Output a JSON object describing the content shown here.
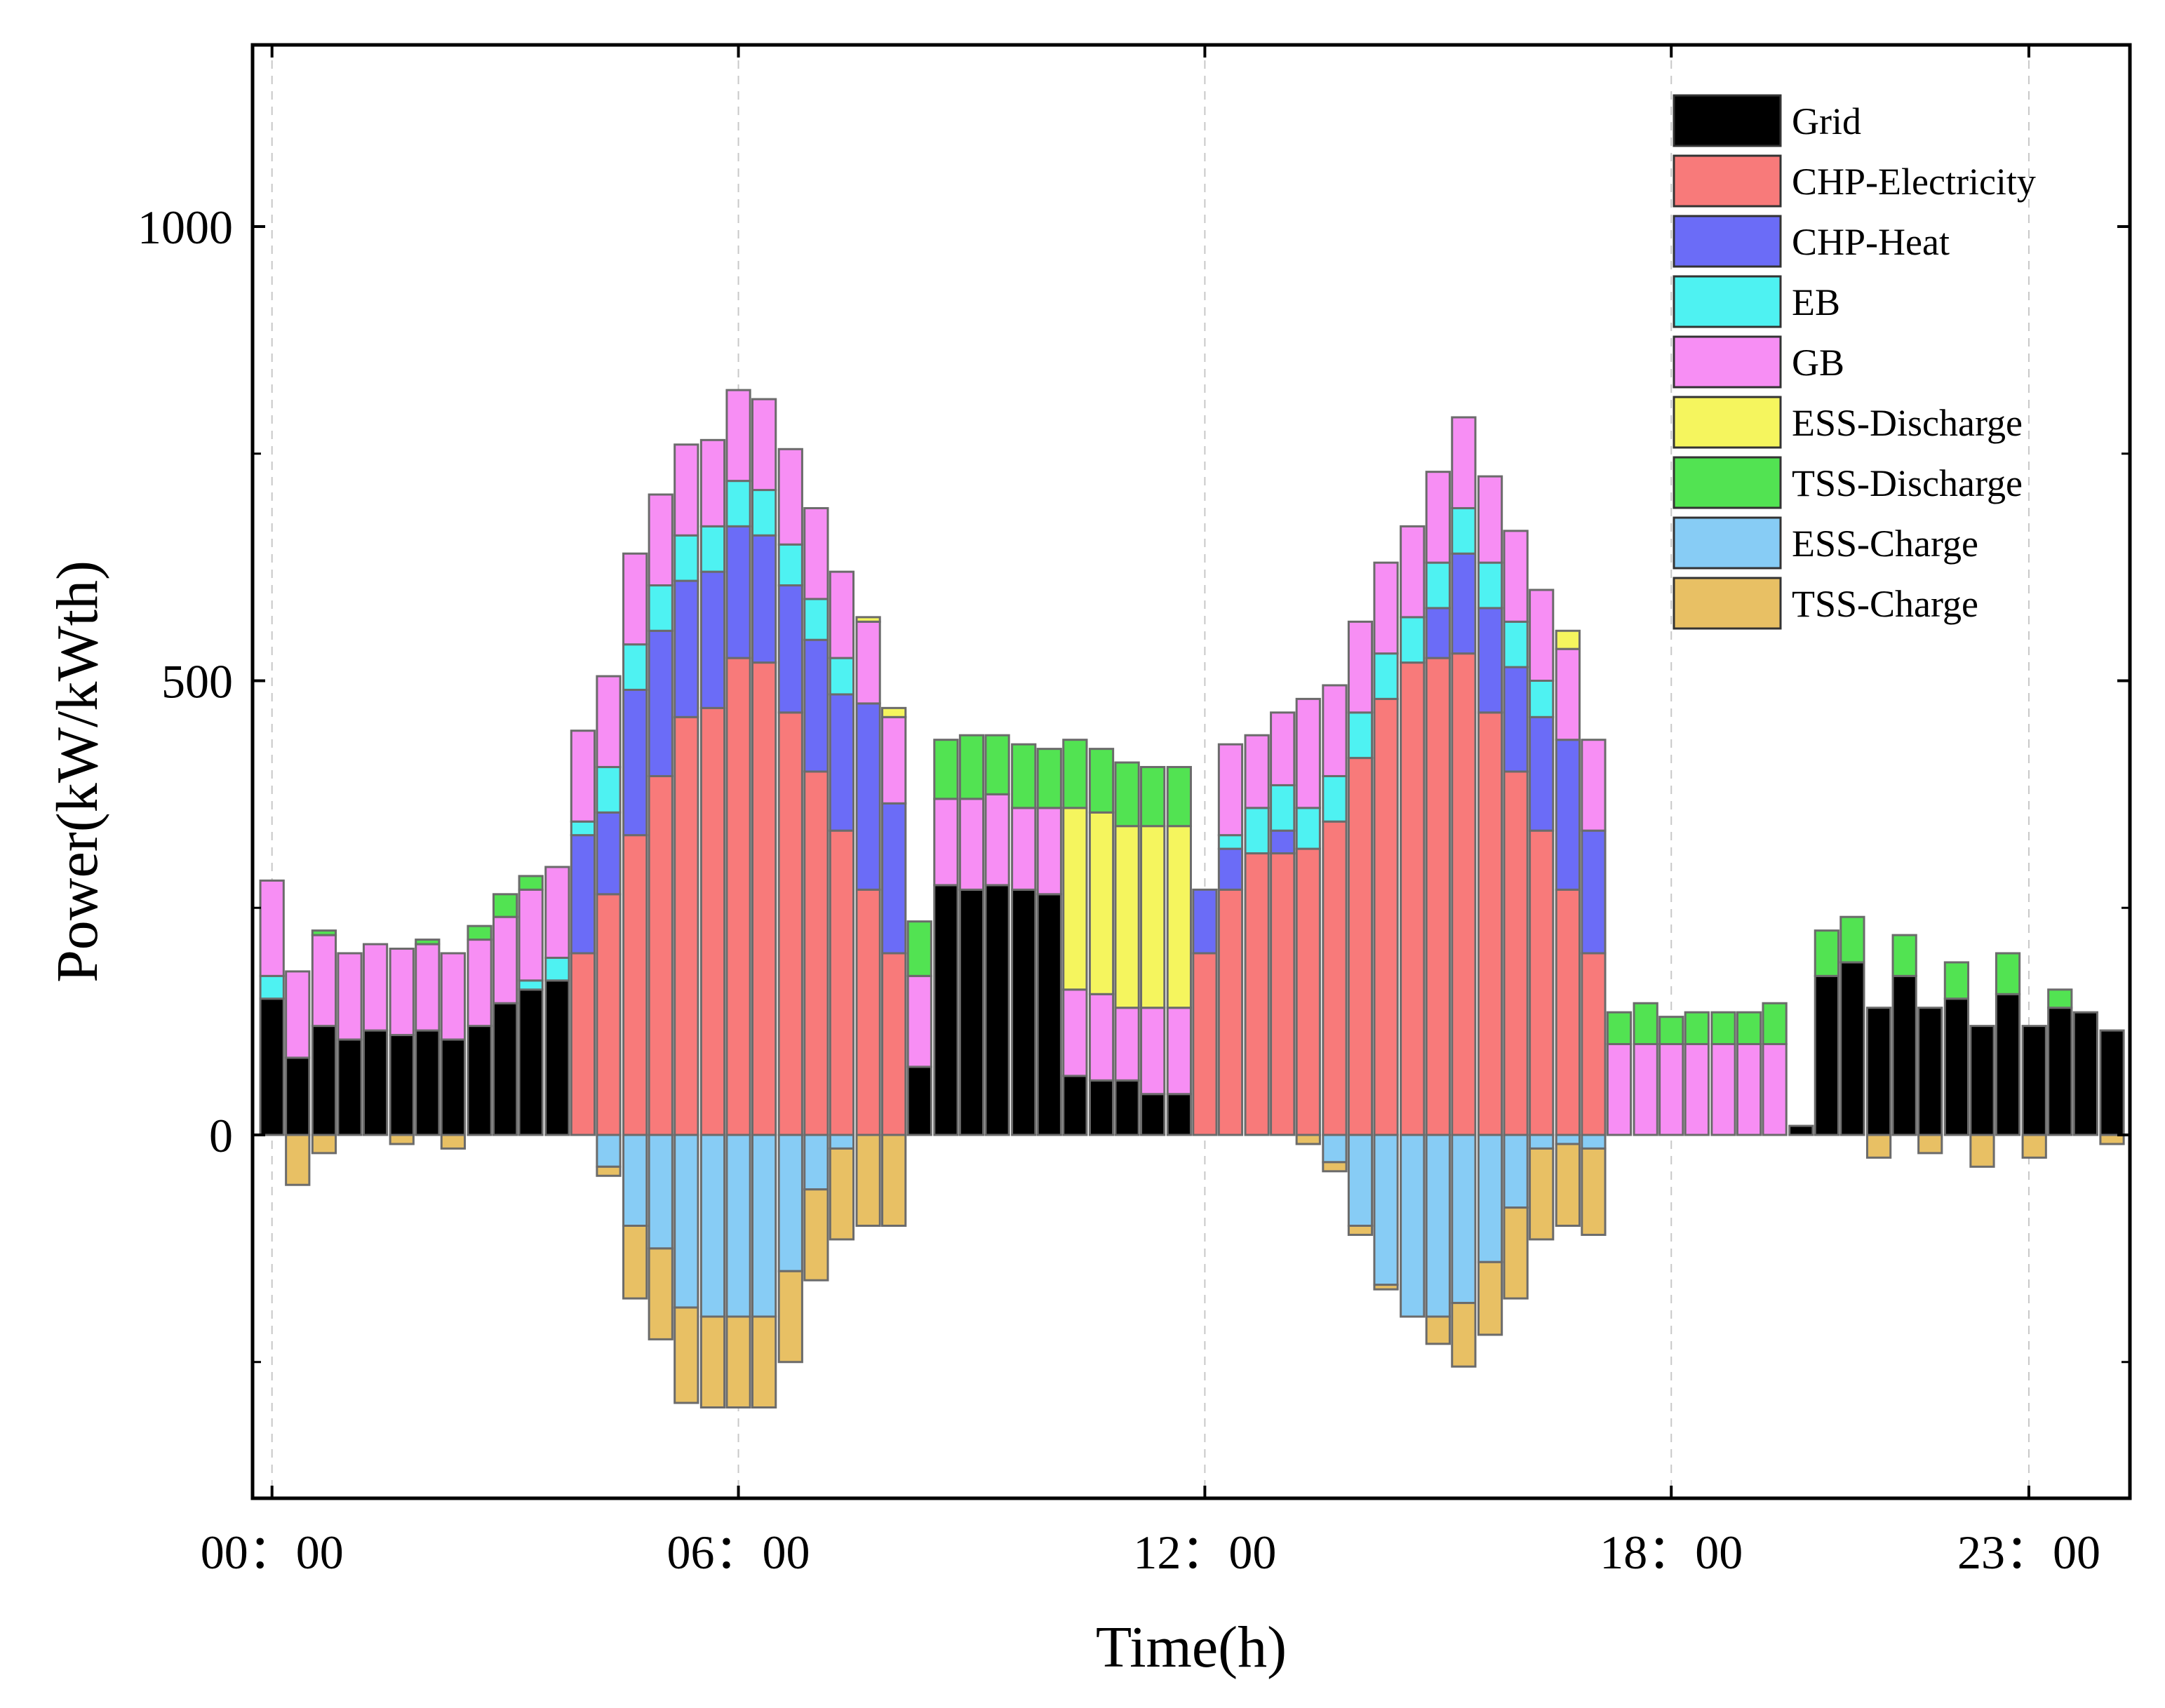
{
  "chart_data": {
    "type": "bar",
    "stacked": true,
    "title": "",
    "xlabel": "Time(h)",
    "ylabel": "Power(kW/kWth)",
    "ylim": [
      -400,
      1200
    ],
    "xlim": [
      -0.25,
      23.9
    ],
    "yticks": [
      0,
      500,
      1000
    ],
    "ytick_labels": [
      "0",
      "500",
      "1000"
    ],
    "xticks": [
      0,
      6,
      12,
      18,
      22.6
    ],
    "xtick_labels": [
      "00：00",
      "06：00",
      "12：00",
      "18：00",
      "23：00"
    ],
    "grid": "vertical-dashed-at-x-ticks",
    "legend_position": "top-right",
    "bar_width": 0.3,
    "time": [
      0.0,
      0.33,
      0.67,
      1.0,
      1.33,
      1.67,
      2.0,
      2.33,
      2.67,
      3.0,
      3.33,
      3.67,
      4.0,
      4.33,
      4.67,
      5.0,
      5.33,
      5.67,
      6.0,
      6.33,
      6.67,
      7.0,
      7.33,
      7.67,
      8.0,
      8.33,
      8.67,
      9.0,
      9.33,
      9.67,
      10.0,
      10.33,
      10.67,
      11.0,
      11.33,
      11.67,
      12.0,
      12.33,
      12.67,
      13.0,
      13.33,
      13.67,
      14.0,
      14.33,
      14.67,
      15.0,
      15.33,
      15.67,
      16.0,
      16.33,
      16.67,
      17.0,
      17.33,
      17.67,
      18.0,
      18.33,
      18.67,
      19.0,
      19.33,
      19.67,
      20.0,
      20.33,
      20.67,
      21.0,
      21.33,
      21.67,
      22.0,
      22.33,
      22.67,
      23.0,
      23.33,
      23.67
    ],
    "series": [
      {
        "name": "Grid",
        "color": "#000000",
        "direction": "positive",
        "values": [
          150,
          85,
          120,
          105,
          115,
          110,
          115,
          105,
          120,
          145,
          160,
          170,
          0,
          0,
          0,
          0,
          0,
          0,
          0,
          0,
          0,
          0,
          0,
          0,
          0,
          75,
          275,
          270,
          275,
          270,
          265,
          65,
          60,
          60,
          45,
          45,
          0,
          0,
          0,
          0,
          0,
          0,
          0,
          0,
          0,
          0,
          0,
          0,
          0,
          0,
          0,
          0,
          0,
          0,
          0,
          0,
          0,
          0,
          0,
          10,
          175,
          190,
          140,
          175,
          140,
          150,
          120,
          155,
          120,
          140,
          135,
          115
        ]
      },
      {
        "name": "CHP-Electricity",
        "color": "#f87a7a",
        "direction": "positive",
        "values": [
          0,
          0,
          0,
          0,
          0,
          0,
          0,
          0,
          0,
          0,
          0,
          0,
          200,
          265,
          330,
          395,
          460,
          470,
          525,
          520,
          465,
          400,
          335,
          270,
          200,
          0,
          0,
          0,
          0,
          0,
          0,
          0,
          0,
          0,
          0,
          0,
          200,
          270,
          310,
          310,
          315,
          345,
          415,
          480,
          520,
          525,
          530,
          465,
          400,
          335,
          270,
          200,
          0,
          0,
          0,
          0,
          0,
          0,
          0,
          0,
          0,
          0,
          0,
          0,
          0,
          0,
          0,
          0,
          0,
          0,
          0,
          0
        ]
      },
      {
        "name": "CHP-Heat",
        "color": "#6b6cf7",
        "direction": "positive",
        "values": [
          0,
          0,
          0,
          0,
          0,
          0,
          0,
          0,
          0,
          0,
          0,
          0,
          130,
          90,
          160,
          160,
          150,
          150,
          145,
          140,
          140,
          145,
          150,
          205,
          165,
          0,
          0,
          0,
          0,
          0,
          0,
          0,
          0,
          0,
          0,
          0,
          70,
          45,
          0,
          25,
          0,
          0,
          0,
          0,
          0,
          55,
          110,
          115,
          115,
          125,
          165,
          135,
          0,
          0,
          0,
          0,
          0,
          0,
          0,
          0,
          0,
          0,
          0,
          0,
          0,
          0,
          0,
          0,
          0,
          0,
          0,
          0
        ]
      },
      {
        "name": "EB",
        "color": "#4ef2f2",
        "direction": "positive",
        "values": [
          25,
          0,
          0,
          0,
          0,
          0,
          0,
          0,
          0,
          0,
          10,
          25,
          15,
          50,
          50,
          50,
          50,
          50,
          50,
          50,
          45,
          45,
          40,
          0,
          0,
          0,
          0,
          0,
          0,
          0,
          0,
          0,
          0,
          0,
          0,
          0,
          0,
          15,
          50,
          50,
          45,
          50,
          50,
          50,
          50,
          50,
          50,
          50,
          50,
          40,
          0,
          0,
          0,
          0,
          0,
          0,
          0,
          0,
          0,
          0,
          0,
          0,
          0,
          0,
          0,
          0,
          0,
          0,
          0,
          0,
          0,
          0
        ]
      },
      {
        "name": "GB",
        "color": "#f78ef4",
        "direction": "positive",
        "values": [
          105,
          95,
          100,
          95,
          95,
          95,
          95,
          95,
          95,
          95,
          100,
          100,
          100,
          100,
          100,
          100,
          100,
          95,
          100,
          100,
          105,
          100,
          95,
          90,
          95,
          100,
          95,
          100,
          100,
          90,
          95,
          95,
          95,
          80,
          95,
          95,
          0,
          100,
          80,
          80,
          120,
          100,
          100,
          100,
          100,
          100,
          100,
          95,
          100,
          100,
          100,
          100,
          100,
          100,
          100,
          100,
          100,
          100,
          100,
          0,
          0,
          0,
          0,
          0,
          0,
          0,
          0,
          0,
          0,
          0,
          0,
          0
        ]
      },
      {
        "name": "ESS-Discharge",
        "color": "#f5f55e",
        "direction": "positive",
        "values": [
          0,
          0,
          0,
          0,
          0,
          0,
          0,
          0,
          0,
          0,
          0,
          0,
          0,
          0,
          0,
          0,
          0,
          0,
          0,
          0,
          0,
          0,
          0,
          5,
          10,
          0,
          0,
          0,
          0,
          0,
          0,
          200,
          200,
          200,
          200,
          200,
          0,
          0,
          0,
          0,
          0,
          0,
          0,
          0,
          0,
          0,
          0,
          0,
          0,
          0,
          20,
          0,
          0,
          0,
          0,
          0,
          0,
          0,
          0,
          0,
          0,
          0,
          0,
          0,
          0,
          0,
          0,
          0,
          0,
          0,
          0,
          0
        ]
      },
      {
        "name": "TSS-Discharge",
        "color": "#52e352",
        "direction": "positive",
        "values": [
          0,
          0,
          5,
          0,
          0,
          0,
          5,
          0,
          15,
          25,
          15,
          0,
          0,
          0,
          0,
          0,
          0,
          0,
          0,
          0,
          0,
          0,
          0,
          0,
          0,
          60,
          65,
          70,
          65,
          70,
          65,
          75,
          70,
          70,
          65,
          65,
          0,
          0,
          0,
          0,
          0,
          0,
          0,
          0,
          0,
          0,
          0,
          0,
          0,
          0,
          0,
          0,
          35,
          45,
          30,
          35,
          35,
          35,
          45,
          0,
          50,
          50,
          0,
          45,
          0,
          40,
          0,
          45,
          0,
          20,
          0,
          0
        ]
      },
      {
        "name": "ESS-Charge",
        "color": "#87ccf5",
        "direction": "negative",
        "values": [
          0,
          0,
          0,
          0,
          0,
          0,
          0,
          0,
          0,
          0,
          0,
          0,
          0,
          35,
          100,
          125,
          190,
          200,
          200,
          200,
          150,
          60,
          15,
          0,
          0,
          0,
          0,
          0,
          0,
          0,
          0,
          0,
          0,
          0,
          0,
          0,
          0,
          0,
          0,
          0,
          0,
          30,
          100,
          165,
          200,
          200,
          185,
          140,
          80,
          15,
          10,
          15,
          0,
          0,
          0,
          0,
          0,
          0,
          0,
          0,
          0,
          0,
          0,
          0,
          0,
          0,
          0,
          0,
          0,
          0,
          0,
          0
        ]
      },
      {
        "name": "TSS-Charge",
        "color": "#e8c064",
        "direction": "negative",
        "values": [
          0,
          55,
          20,
          0,
          0,
          10,
          0,
          15,
          0,
          0,
          0,
          0,
          0,
          10,
          80,
          100,
          105,
          100,
          100,
          100,
          100,
          100,
          100,
          100,
          100,
          0,
          0,
          0,
          0,
          0,
          0,
          0,
          0,
          0,
          0,
          0,
          0,
          0,
          0,
          0,
          10,
          10,
          10,
          5,
          0,
          30,
          70,
          80,
          100,
          100,
          90,
          95,
          0,
          0,
          0,
          0,
          0,
          0,
          0,
          0,
          0,
          0,
          25,
          0,
          20,
          0,
          35,
          0,
          25,
          0,
          0,
          10
        ]
      }
    ]
  }
}
